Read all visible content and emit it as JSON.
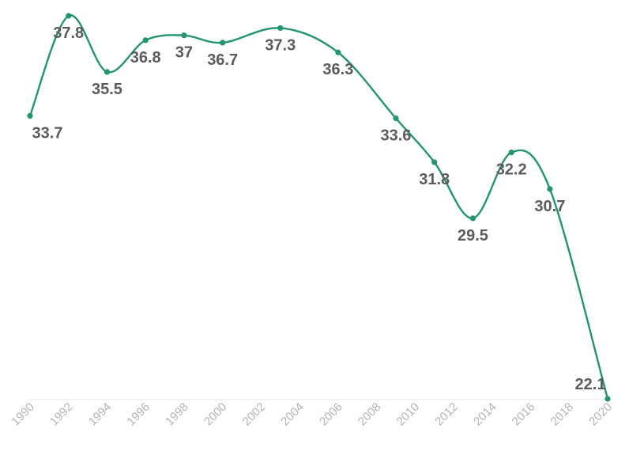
{
  "colors": {
    "line": "#22956d",
    "label": "#5b5b5b",
    "tick": "#b4b4b4",
    "axis": "#e6e6e6"
  },
  "chart_data": {
    "type": "line",
    "title": "",
    "xlabel": "",
    "ylabel": "",
    "x_ticks": [
      "1990",
      "1992",
      "1994",
      "1996",
      "1998",
      "2000",
      "2002",
      "2004",
      "2006",
      "2008",
      "2010",
      "2012",
      "2014",
      "2016",
      "2018",
      "2020"
    ],
    "xlim": [
      1990,
      2020
    ],
    "ylim": [
      22.1,
      37.8
    ],
    "grid": false,
    "legend": "none",
    "series": [
      {
        "x": [
          1990,
          1992,
          1994,
          1996,
          1998,
          2000,
          2003,
          2006,
          2009,
          2011,
          2013,
          2015,
          2017,
          2020
        ],
        "values": [
          33.7,
          37.8,
          35.5,
          36.8,
          37,
          36.7,
          37.3,
          36.3,
          33.6,
          31.8,
          29.5,
          32.2,
          30.7,
          22.1
        ],
        "labels": [
          "33.7",
          "37.8",
          "35.5",
          "36.8",
          "37",
          "36.7",
          "37.3",
          "36.3",
          "33.6",
          "31.8",
          "29.5",
          "32.2",
          "30.7",
          "22.1"
        ]
      }
    ]
  }
}
